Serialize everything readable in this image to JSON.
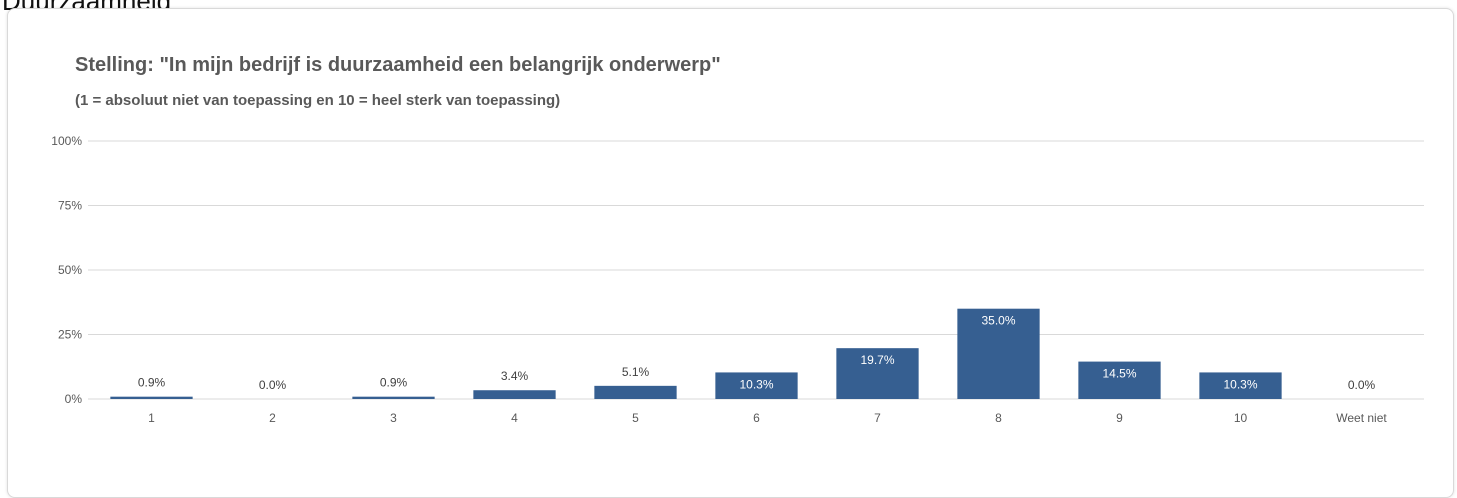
{
  "page": {
    "heading": "Duurzaamheid"
  },
  "chart_data": {
    "type": "bar",
    "title": "Stelling: \"In mijn bedrijf is duurzaamheid een belangrijk onderwerp\"",
    "subtitle": "(1 = absoluut niet van toepassing en 10 = heel sterk van toepassing)",
    "categories": [
      "1",
      "2",
      "3",
      "4",
      "5",
      "6",
      "7",
      "8",
      "9",
      "10",
      "Weet niet"
    ],
    "values": [
      0.9,
      0.0,
      0.9,
      3.4,
      5.1,
      10.3,
      19.7,
      35.0,
      14.5,
      10.3,
      0.0
    ],
    "data_labels": [
      "0.9%",
      "0.0%",
      "0.9%",
      "3.4%",
      "5.1%",
      "10.3%",
      "19.7%",
      "35.0%",
      "14.5%",
      "10.3%",
      "0.0%"
    ],
    "ylim": [
      0,
      100
    ],
    "yticks": [
      0,
      25,
      50,
      75,
      100
    ],
    "ytick_labels": [
      "0%",
      "25%",
      "50%",
      "75%",
      "100%"
    ],
    "xlabel": "",
    "ylabel": "",
    "grid": true,
    "legend": "none",
    "colors": {
      "bar": "#365f91",
      "gridline": "#d9d9d9",
      "axis_text": "#595959",
      "label_inside": "#ffffff",
      "label_outside": "#404040"
    }
  }
}
